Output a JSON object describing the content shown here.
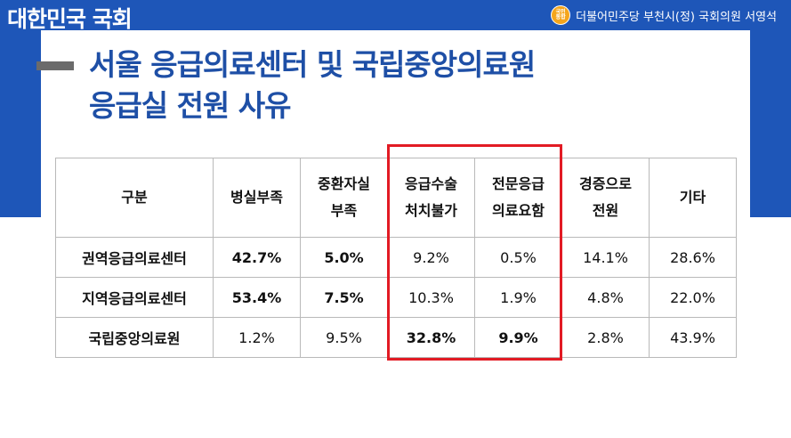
{
  "header": {
    "brand": "대한민국 국회",
    "party_logo_text": "국민\n통합",
    "party_info": "더불어민주당 부천시(정) 국회의원 서영석"
  },
  "title": {
    "line1": "서울 응급의료센터 및 국립중앙의료원",
    "line2": "응급실 전원 사유"
  },
  "table": {
    "headers": [
      [
        "구분"
      ],
      [
        "병실부족"
      ],
      [
        "중환자실",
        "부족"
      ],
      [
        "응급수술",
        "처치불가"
      ],
      [
        "전문응급",
        "의료요함"
      ],
      [
        "경증으로",
        "전원"
      ],
      [
        "기타"
      ]
    ],
    "rows": [
      {
        "label": "권역응급의료센터",
        "values": [
          "42.7%",
          "5.0%",
          "9.2%",
          "0.5%",
          "14.1%",
          "28.6%"
        ]
      },
      {
        "label": "지역응급의료센터",
        "values": [
          "53.4%",
          "7.5%",
          "10.3%",
          "1.9%",
          "4.8%",
          "22.0%"
        ]
      },
      {
        "label": "국립중앙의료원",
        "values": [
          "1.2%",
          "9.5%",
          "32.8%",
          "9.9%",
          "2.8%",
          "43.9%"
        ]
      }
    ],
    "highlight_color": "#e21b24"
  },
  "colors": {
    "band": "#1e56b8",
    "title": "#1e4fa6"
  }
}
